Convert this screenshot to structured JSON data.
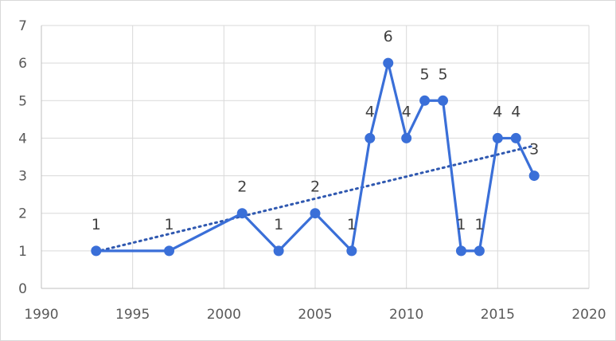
{
  "chart_data": {
    "type": "scatter",
    "title": "",
    "xlabel": "",
    "ylabel": "",
    "xlim": [
      1990,
      2020
    ],
    "ylim": [
      0,
      7
    ],
    "x_ticks": [
      1990,
      1995,
      2000,
      2005,
      2010,
      2015,
      2020
    ],
    "y_ticks": [
      0,
      1,
      2,
      3,
      4,
      5,
      6,
      7
    ],
    "grid": true,
    "legend": "none",
    "series": [
      {
        "color": "#3a6fd8",
        "style": "line-with-markers",
        "x": [
          1993,
          1997,
          2001,
          2003,
          2005,
          2007,
          2008,
          2009,
          2010,
          2011,
          2012,
          2013,
          2014,
          2015,
          2016,
          2017
        ],
        "y": [
          1,
          1,
          2,
          1,
          2,
          1,
          4,
          6,
          4,
          5,
          5,
          1,
          1,
          4,
          4,
          3
        ],
        "data_labels": [
          "1",
          "1",
          "2",
          "1",
          "2",
          "1",
          "4",
          "6",
          "4",
          "5",
          "5",
          "1",
          "1",
          "4",
          "4",
          "3"
        ]
      }
    ],
    "trendline": {
      "type": "linear",
      "style": "dotted",
      "color": "#2f58b0",
      "x": [
        1993,
        2017
      ],
      "y": [
        0.98,
        3.8
      ]
    }
  }
}
